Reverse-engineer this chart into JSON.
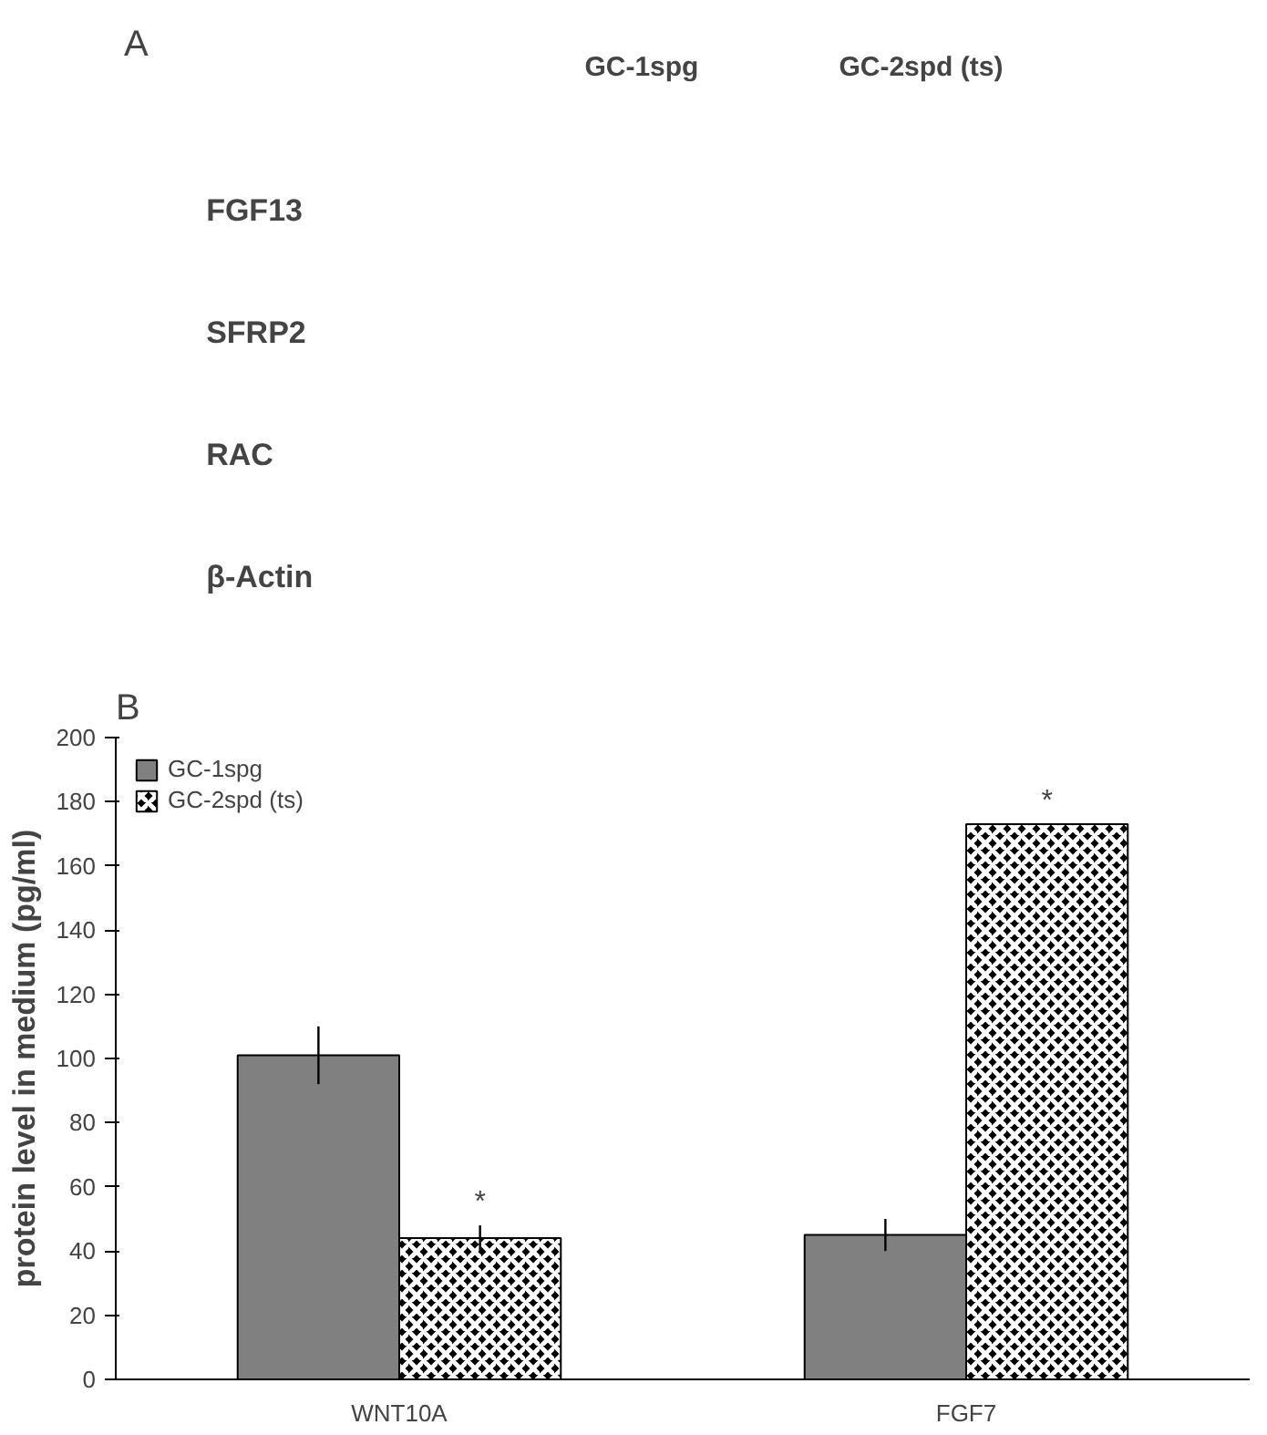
{
  "chart_data": [
    {
      "type": "other",
      "title": "A",
      "categories": [
        "GC-1spg",
        "GC-2spd (ts)"
      ],
      "y_categories": [
        "FGF13",
        "SFRP2",
        "RAC",
        "β-Actin"
      ]
    },
    {
      "type": "bar",
      "title": "B",
      "ylabel": "protein level in medium (pg/ml)",
      "categories": [
        "WNT10A",
        "FGF7"
      ],
      "series": [
        {
          "name": "GC-1spg",
          "color": "#808080",
          "values": [
            101,
            45
          ],
          "errors": [
            9,
            5
          ]
        },
        {
          "name": "GC-2spd (ts)",
          "color": "#000000",
          "values": [
            44,
            173
          ],
          "errors": [
            4,
            null
          ]
        }
      ],
      "ylim": [
        0,
        200
      ],
      "yticks": [
        0,
        20,
        40,
        60,
        80,
        100,
        120,
        140,
        160,
        180,
        200
      ],
      "legend": "top left",
      "annotations": [
        "*",
        "*"
      ]
    }
  ]
}
